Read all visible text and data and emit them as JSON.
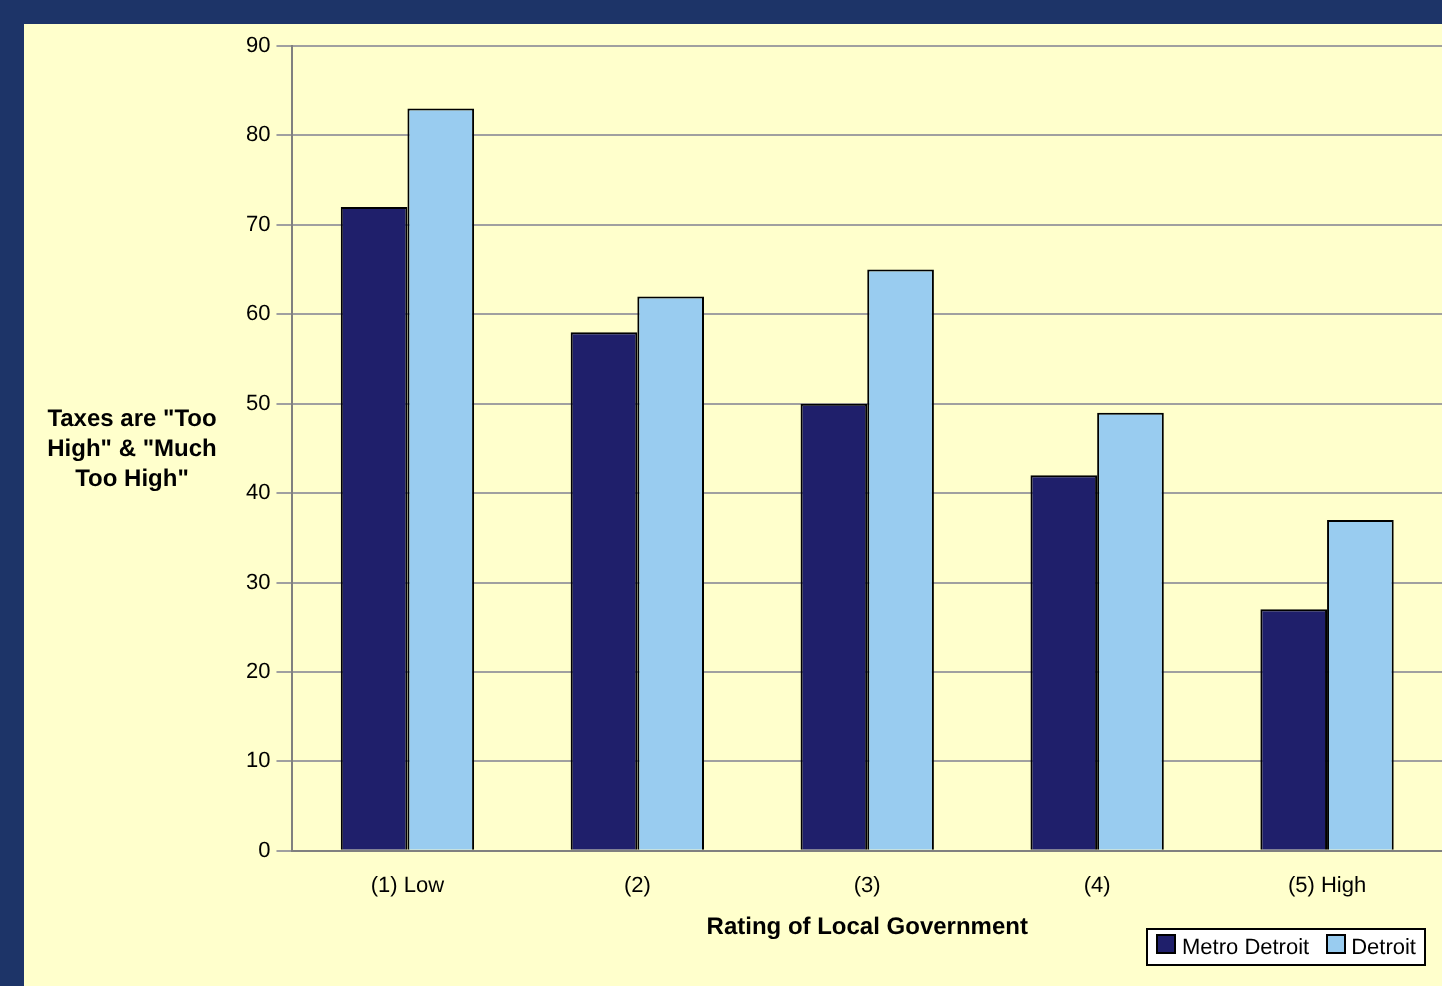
{
  "chart_data": {
    "type": "bar",
    "xlabel": "Rating of Local Government",
    "ylabel": "Taxes are \"Too High\" & \"Much Too High\"",
    "categories": [
      "(1) Low",
      "(2)",
      "(3)",
      "(4)",
      "(5) High"
    ],
    "series": [
      {
        "name": "Metro Detroit",
        "color": "#1f1f6b",
        "values": [
          72,
          58,
          50,
          42,
          27
        ]
      },
      {
        "name": "Detroit",
        "color": "#99ccf0",
        "values": [
          83,
          62,
          65,
          49,
          37
        ]
      }
    ],
    "ylim": [
      0,
      90
    ],
    "yticks": [
      0,
      10,
      20,
      30,
      40,
      50,
      60,
      70,
      80,
      90
    ],
    "grid": "y",
    "legend": "bottom right"
  }
}
